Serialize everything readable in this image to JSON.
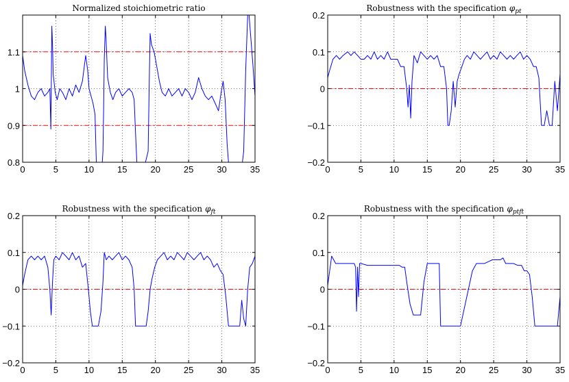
{
  "colors": {
    "series": "#0000ff",
    "reference": "#ff0000",
    "grid": "#000000",
    "axes": "#000000"
  },
  "chart_data": [
    {
      "type": "line",
      "title": "Normalized stoichiometric ratio",
      "title_symbol": "",
      "title_subscript": "",
      "xlim": [
        0,
        35
      ],
      "ylim": [
        0.8,
        1.2
      ],
      "xticks": [
        "0",
        "5",
        "10",
        "15",
        "20",
        "25",
        "30",
        "35"
      ],
      "yticks": [
        "0.8",
        "0.9",
        "1",
        "1.1"
      ],
      "ytick_values": [
        0.8,
        0.9,
        1.0,
        1.1
      ],
      "grid": true,
      "reference_lines": [
        0.9,
        1.1
      ],
      "series": [
        {
          "x": [
            0,
            0.3,
            0.8,
            1.3,
            1.8,
            2.3,
            2.8,
            3.3,
            3.8,
            4.1,
            4.25,
            4.4,
            4.5,
            4.6,
            4.9,
            5.2,
            5.6,
            6.0,
            6.5,
            7.0,
            7.5,
            8.0,
            8.5,
            9.0,
            9.5,
            9.8,
            10.0,
            10.3,
            10.6,
            10.9,
            11.1,
            11.4,
            11.7,
            11.9,
            12.0,
            12.1,
            12.2,
            12.3,
            12.45,
            12.55,
            12.8,
            13.2,
            13.6,
            14.0,
            14.5,
            15.0,
            15.5,
            16.0,
            16.5,
            16.8,
            17.0,
            17.2,
            17.5,
            17.8,
            18.0,
            18.5,
            18.9,
            19.1,
            19.2,
            19.4,
            19.8,
            20.2,
            20.6,
            21.0,
            21.5,
            22.0,
            22.5,
            23.0,
            23.5,
            24.0,
            24.5,
            25.0,
            25.5,
            26.0,
            26.5,
            27.0,
            27.5,
            28.0,
            28.5,
            29.0,
            29.5,
            29.9,
            30.2,
            30.5,
            30.8,
            31.0,
            31.2,
            31.5,
            32.0,
            32.4,
            32.8,
            33.1,
            33.3,
            33.6,
            33.9,
            34.1,
            34.4,
            34.7,
            35
          ],
          "y": [
            1.09,
            1.05,
            1.01,
            0.98,
            0.97,
            0.99,
            1.0,
            0.98,
            0.99,
            1.0,
            0.89,
            1.17,
            1.12,
            1.04,
            0.99,
            0.97,
            1.0,
            0.99,
            0.97,
            1.0,
            0.98,
            1.01,
            0.99,
            1.02,
            1.09,
            1.05,
            1.0,
            0.98,
            0.96,
            0.93,
            0.8,
            0.8,
            0.8,
            0.8,
            0.8,
            0.83,
            0.95,
            1.08,
            1.17,
            1.14,
            1.03,
            0.99,
            0.97,
            0.99,
            1.0,
            0.98,
            0.99,
            1.0,
            0.99,
            0.97,
            0.88,
            0.8,
            0.8,
            0.8,
            0.8,
            0.8,
            0.83,
            1.05,
            1.15,
            1.12,
            1.1,
            1.06,
            1.02,
            0.99,
            0.98,
            1.0,
            0.98,
            0.99,
            1.0,
            0.98,
            1.0,
            0.99,
            0.97,
            0.99,
            1.03,
            1.0,
            0.98,
            0.97,
            0.98,
            0.96,
            0.94,
            0.99,
            1.02,
            0.97,
            0.85,
            0.8,
            0.8,
            0.8,
            0.8,
            0.8,
            0.8,
            0.8,
            0.83,
            1.05,
            1.2,
            1.2,
            1.13,
            1.06,
            0.98
          ]
        }
      ]
    },
    {
      "type": "line",
      "title": "Robustness with the specification",
      "title_symbol": "φ",
      "title_subscript": "pt",
      "xlim": [
        0,
        35
      ],
      "ylim": [
        -0.2,
        0.2
      ],
      "xticks": [
        "0",
        "5",
        "10",
        "15",
        "20",
        "25",
        "30",
        "35"
      ],
      "yticks": [
        "−0.2",
        "−0.1",
        "0",
        "0.1",
        "0.2"
      ],
      "ytick_values": [
        -0.2,
        -0.1,
        0,
        0.1,
        0.2
      ],
      "grid": true,
      "reference_lines": [
        0
      ],
      "series": [
        {
          "x": [
            0,
            0.3,
            0.8,
            1.3,
            1.8,
            2.3,
            3.0,
            3.5,
            4.0,
            4.5,
            5.0,
            5.5,
            6.0,
            6.5,
            7.0,
            7.5,
            8.0,
            8.5,
            9.0,
            9.5,
            10.0,
            10.5,
            11.0,
            11.5,
            11.9,
            12.1,
            12.3,
            12.5,
            12.7,
            13.0,
            13.5,
            14.0,
            14.5,
            15.0,
            15.5,
            16.0,
            16.5,
            17.0,
            17.5,
            17.9,
            18.1,
            18.3,
            18.6,
            18.9,
            19.2,
            19.5,
            19.8,
            20.2,
            20.6,
            21.0,
            21.5,
            22.0,
            22.5,
            23.0,
            23.5,
            24.0,
            24.5,
            25.0,
            25.5,
            26.0,
            26.5,
            27.0,
            27.5,
            28.0,
            28.5,
            29.0,
            29.5,
            30.0,
            30.5,
            31.0,
            31.4,
            31.8,
            32.2,
            32.6,
            33.0,
            33.4,
            33.8,
            34.2,
            34.6,
            35
          ],
          "y": [
            0.03,
            0.05,
            0.08,
            0.09,
            0.08,
            0.09,
            0.1,
            0.09,
            0.1,
            0.09,
            0.08,
            0.08,
            0.09,
            0.08,
            0.1,
            0.08,
            0.09,
            0.08,
            0.1,
            0.08,
            0.08,
            0.08,
            0.06,
            0.06,
            0.0,
            -0.05,
            0.01,
            -0.08,
            0.02,
            0.09,
            0.07,
            0.1,
            0.09,
            0.08,
            0.09,
            0.08,
            0.09,
            0.06,
            0.06,
            0.0,
            -0.1,
            -0.1,
            -0.06,
            0.02,
            -0.05,
            0.02,
            0.04,
            0.06,
            0.08,
            0.09,
            0.08,
            0.1,
            0.09,
            0.08,
            0.09,
            0.1,
            0.08,
            0.09,
            0.08,
            0.1,
            0.09,
            0.08,
            0.09,
            0.08,
            0.09,
            0.1,
            0.08,
            0.09,
            0.08,
            0.06,
            0.06,
            0.03,
            -0.1,
            -0.1,
            -0.06,
            -0.1,
            -0.1,
            0.02,
            -0.06,
            0.04
          ]
        }
      ]
    },
    {
      "type": "line",
      "title": "Robustness with the specification",
      "title_symbol": "φ",
      "title_subscript": "ft",
      "xlim": [
        0,
        35
      ],
      "ylim": [
        -0.2,
        0.2
      ],
      "xticks": [
        "0",
        "5",
        "10",
        "15",
        "20",
        "25",
        "30",
        "35"
      ],
      "yticks": [
        "−0.2",
        "−0.1",
        "0",
        "0.1",
        "0.2"
      ],
      "ytick_values": [
        -0.2,
        -0.1,
        0,
        0.1,
        0.2
      ],
      "grid": true,
      "reference_lines": [
        0
      ],
      "series": [
        {
          "x": [
            0,
            0.3,
            0.8,
            1.3,
            1.8,
            2.3,
            2.8,
            3.3,
            3.8,
            4.1,
            4.3,
            4.5,
            4.7,
            5.0,
            5.5,
            6.0,
            6.5,
            7.0,
            7.5,
            8.0,
            8.5,
            9.0,
            9.5,
            9.9,
            10.2,
            10.5,
            10.8,
            11.0,
            11.4,
            11.8,
            12.1,
            12.3,
            12.6,
            13.0,
            13.5,
            14.0,
            14.5,
            15.0,
            15.5,
            16.0,
            16.5,
            16.8,
            17.0,
            17.5,
            18.0,
            18.6,
            18.9,
            19.2,
            19.5,
            19.9,
            20.3,
            20.8,
            21.3,
            21.8,
            22.3,
            22.8,
            23.3,
            23.8,
            24.3,
            24.8,
            25.3,
            25.8,
            26.3,
            26.8,
            27.3,
            27.8,
            28.3,
            28.8,
            29.3,
            29.8,
            30.2,
            30.6,
            31.0,
            31.5,
            32.0,
            32.4,
            32.7,
            33.0,
            33.3,
            33.6,
            33.9,
            34.2,
            34.6,
            35
          ],
          "y": [
            0.01,
            0.04,
            0.08,
            0.09,
            0.08,
            0.09,
            0.08,
            0.09,
            0.06,
            0.0,
            -0.07,
            0.02,
            0.08,
            0.09,
            0.08,
            0.1,
            0.09,
            0.08,
            0.1,
            0.08,
            0.09,
            0.06,
            0.07,
            0.0,
            -0.06,
            -0.1,
            -0.1,
            -0.1,
            -0.1,
            -0.06,
            0.02,
            0.1,
            0.08,
            0.09,
            0.08,
            0.09,
            0.1,
            0.08,
            0.09,
            0.08,
            0.06,
            0.0,
            -0.1,
            -0.1,
            -0.1,
            -0.1,
            -0.06,
            0.0,
            0.03,
            0.06,
            0.08,
            0.09,
            0.1,
            0.08,
            0.09,
            0.08,
            0.1,
            0.09,
            0.08,
            0.1,
            0.09,
            0.08,
            0.09,
            0.1,
            0.08,
            0.09,
            0.08,
            0.06,
            0.07,
            0.05,
            0.04,
            -0.02,
            -0.1,
            -0.1,
            -0.1,
            -0.1,
            -0.1,
            -0.03,
            -0.08,
            -0.1,
            0.0,
            0.06,
            0.07,
            0.09
          ]
        }
      ]
    },
    {
      "type": "line",
      "title": "Robustness with the specification",
      "title_symbol": "φ",
      "title_subscript": "ptft",
      "xlim": [
        0,
        35
      ],
      "ylim": [
        -0.2,
        0.2
      ],
      "xticks": [
        "0",
        "5",
        "10",
        "15",
        "20",
        "25",
        "30",
        "35"
      ],
      "yticks": [
        "−0.2",
        "−0.1",
        "0",
        "0.1",
        "0.2"
      ],
      "ytick_values": [
        -0.2,
        -0.1,
        0,
        0.1,
        0.2
      ],
      "grid": true,
      "reference_lines": [
        0
      ],
      "series": [
        {
          "x": [
            0,
            0.3,
            0.6,
            0.9,
            1.2,
            1.6,
            2.0,
            3.0,
            4.0,
            4.2,
            4.35,
            4.5,
            4.65,
            4.8,
            5.0,
            6.0,
            7.0,
            8.0,
            9.0,
            10.0,
            10.4,
            10.8,
            11.2,
            11.6,
            11.9,
            12.4,
            12.9,
            13.4,
            14.0,
            14.5,
            15.0,
            15.5,
            16.0,
            16.5,
            16.8,
            17.0,
            17.6,
            18.2,
            18.8,
            19.4,
            20.0,
            20.6,
            21.2,
            21.8,
            22.4,
            23.0,
            23.6,
            24.2,
            24.8,
            25.2,
            25.6,
            26.0,
            26.4,
            26.8,
            27.4,
            28.0,
            28.6,
            29.2,
            29.6,
            30.0,
            30.4,
            30.8,
            31.2,
            31.6,
            32.4,
            33.2,
            34.0,
            34.6,
            35
          ],
          "y": [
            0.01,
            0.05,
            0.09,
            0.08,
            0.07,
            0.07,
            0.07,
            0.07,
            0.07,
            0.06,
            -0.06,
            0.06,
            -0.02,
            0.07,
            0.07,
            0.065,
            0.065,
            0.065,
            0.065,
            0.065,
            0.065,
            0.065,
            0.06,
            0.06,
            0.02,
            -0.04,
            -0.07,
            -0.07,
            -0.07,
            0.02,
            0.07,
            0.07,
            0.07,
            0.07,
            0.07,
            -0.1,
            -0.1,
            -0.1,
            -0.1,
            -0.1,
            -0.1,
            -0.05,
            0.0,
            0.05,
            0.07,
            0.07,
            0.07,
            0.075,
            0.08,
            0.08,
            0.08,
            0.08,
            0.085,
            0.07,
            0.07,
            0.07,
            0.065,
            0.065,
            0.05,
            0.05,
            0.04,
            -0.02,
            -0.1,
            -0.1,
            -0.1,
            -0.1,
            -0.1,
            -0.1,
            -0.02
          ]
        }
      ]
    }
  ]
}
